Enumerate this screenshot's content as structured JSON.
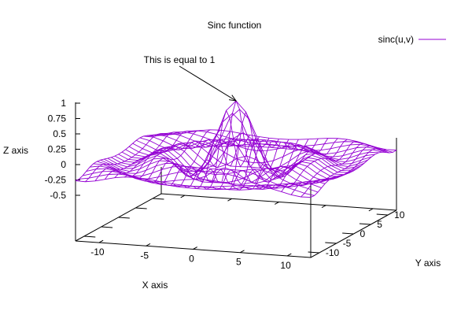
{
  "chart_data": {
    "type": "surface",
    "title": "Sinc function",
    "function": "sinc(u,v)",
    "xlabel": "X axis",
    "ylabel": "Y axis",
    "zlabel": "Z axis",
    "xlim": [
      -12.5,
      12.5
    ],
    "ylim": [
      -12.5,
      12.5
    ],
    "zlim": [
      -0.6,
      1.0
    ],
    "x_ticks": [
      {
        "value": -10,
        "label": "-10"
      },
      {
        "value": -5,
        "label": "-5"
      },
      {
        "value": 0,
        "label": "0"
      },
      {
        "value": 5,
        "label": "5"
      },
      {
        "value": 10,
        "label": "10"
      }
    ],
    "y_ticks": [
      {
        "value": -10,
        "label": "-10"
      },
      {
        "value": -5,
        "label": "-5"
      },
      {
        "value": 0,
        "label": "0"
      },
      {
        "value": 5,
        "label": "5"
      },
      {
        "value": 10,
        "label": "10"
      }
    ],
    "z_ticks": [
      {
        "value": 1,
        "label": "1"
      },
      {
        "value": 0.75,
        "label": "0.75"
      },
      {
        "value": 0.5,
        "label": "0.5"
      },
      {
        "value": 0.25,
        "label": "0.25"
      },
      {
        "value": 0,
        "label": "0"
      },
      {
        "value": -0.25,
        "label": "-0.25"
      },
      {
        "value": -0.5,
        "label": "-0.5"
      }
    ],
    "grid": false,
    "mesh_samples": 25,
    "series": [
      {
        "name": "sinc(u,v)",
        "color": "#9400d3"
      }
    ],
    "legend": {
      "position": "top-right"
    },
    "annotations": [
      {
        "text": "This is equal to 1",
        "x": 0,
        "y": 0,
        "z": 1
      }
    ]
  }
}
